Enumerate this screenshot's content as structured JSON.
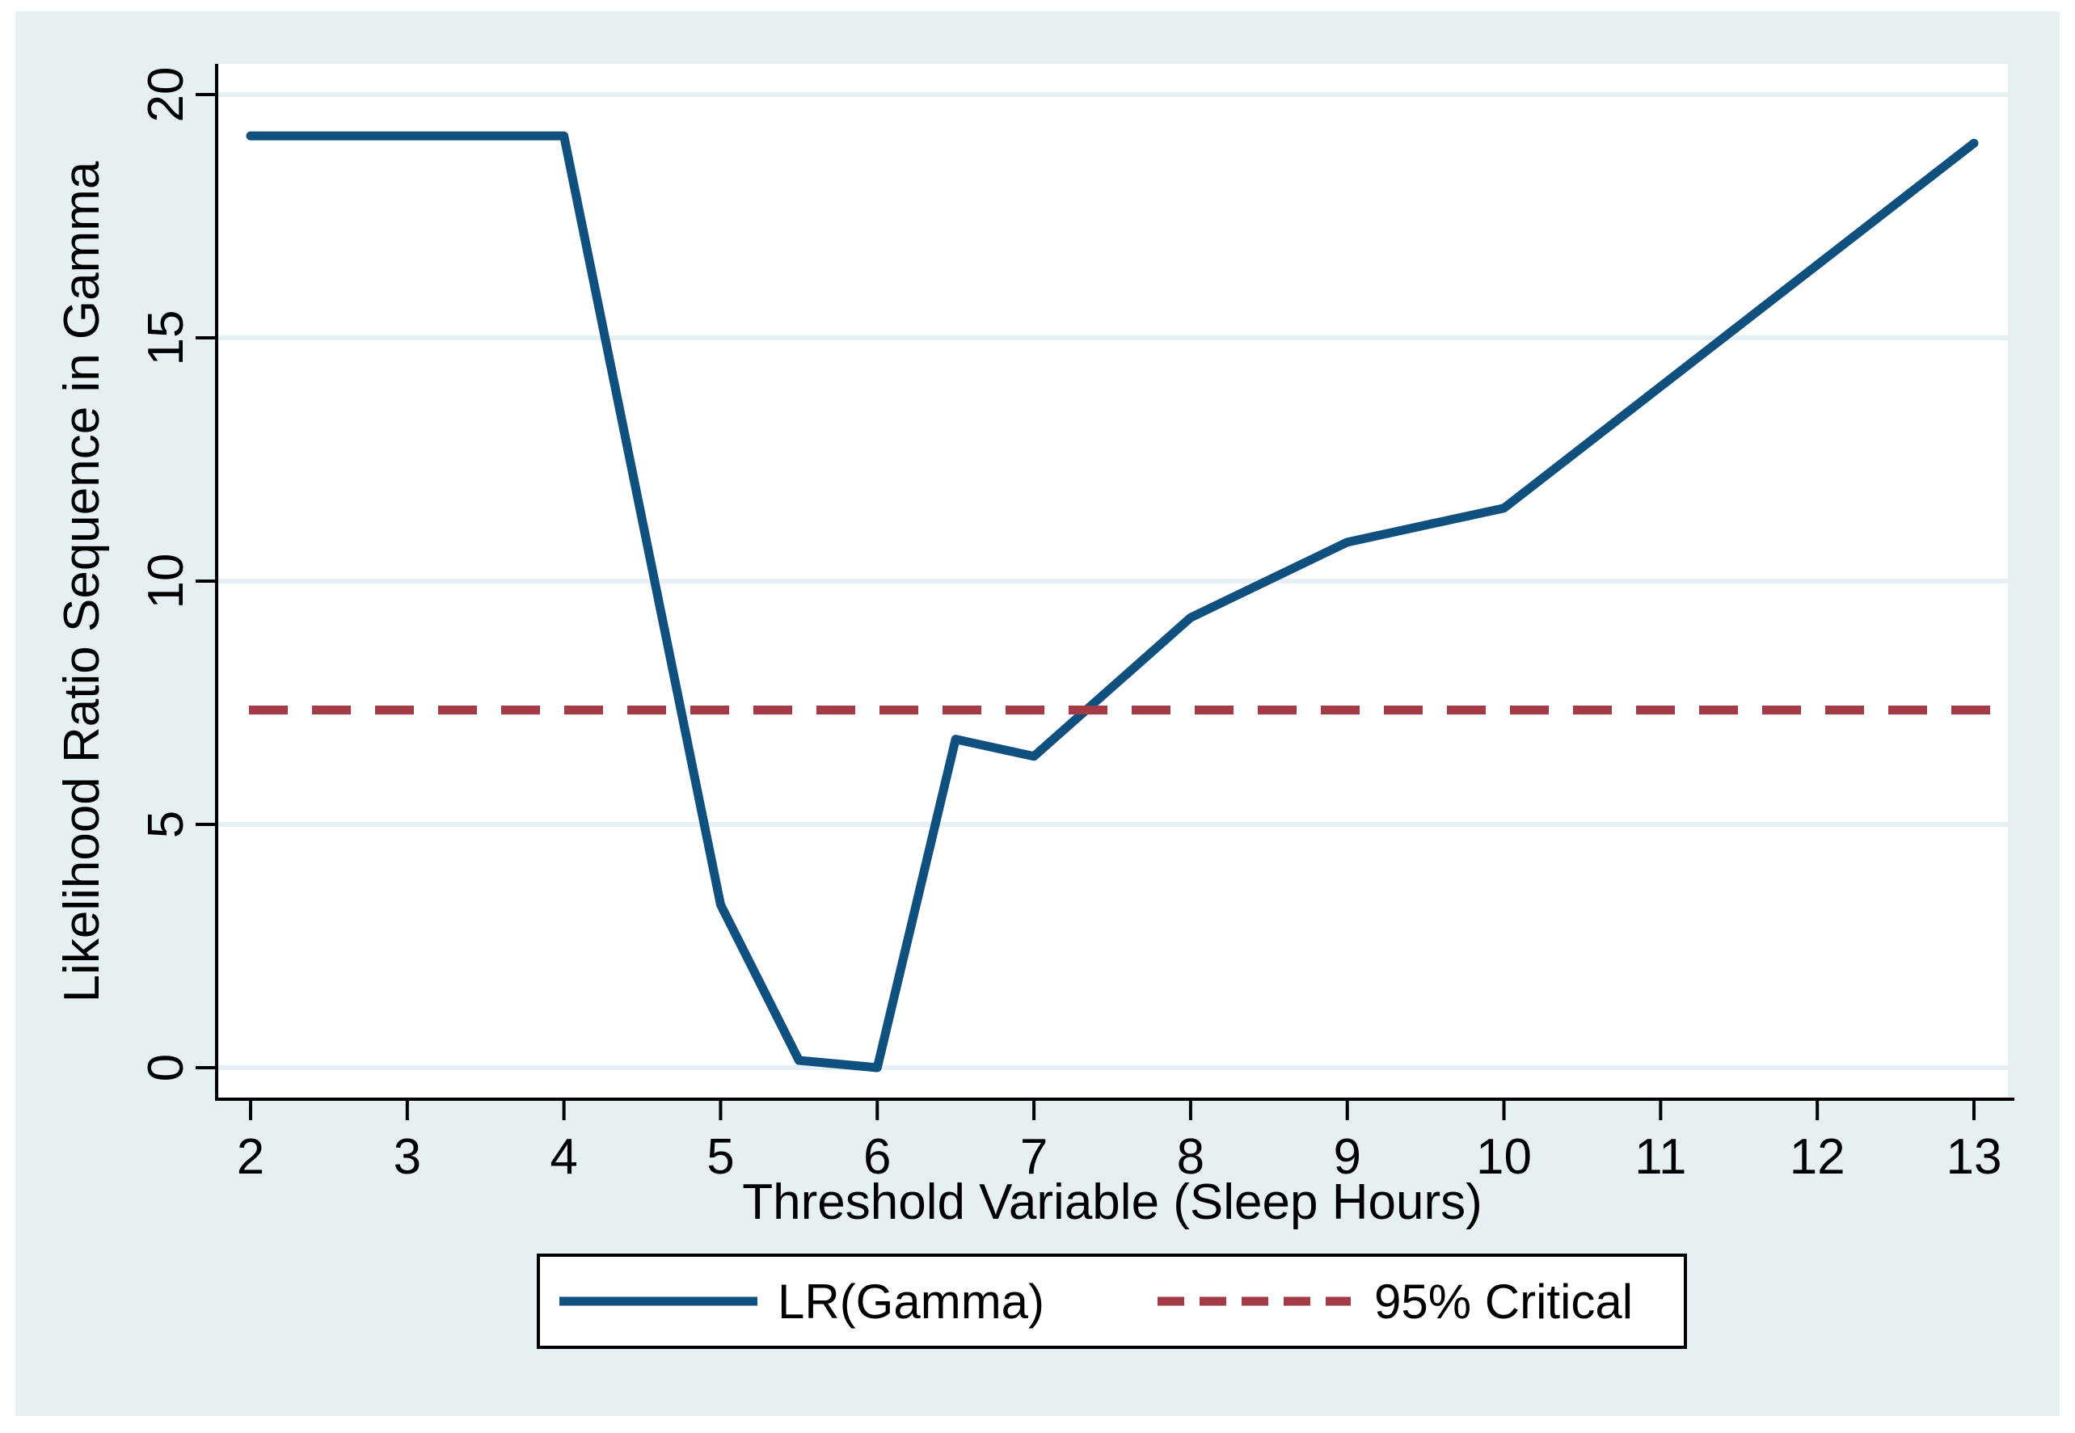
{
  "figure": {
    "canvas_color": "#ffffff",
    "region_color": "#e6f0f2",
    "plot_color": "#ffffff",
    "grid_color": "#e6f0f2",
    "axis_color": "#000000"
  },
  "chart_data": {
    "type": "line",
    "title": "",
    "xlabel": "Threshold Variable (Sleep Hours)",
    "ylabel": "Likelihood Ratio Sequence in Gamma",
    "xlim": [
      2,
      13
    ],
    "ylim": [
      0,
      20
    ],
    "x_ticks": [
      2,
      3,
      4,
      5,
      6,
      7,
      8,
      9,
      10,
      11,
      12,
      13
    ],
    "y_ticks": [
      0,
      5,
      10,
      15,
      20
    ],
    "grid": "horizontal gridlines at y ticks",
    "legend_position": "bottom center, boxed",
    "series": [
      {
        "name": "LR(Gamma)",
        "style": "solid",
        "color": "#10507e",
        "x": [
          2,
          4,
          5,
          5.5,
          6,
          6.5,
          7,
          8,
          9,
          10,
          13
        ],
        "y": [
          19.15,
          19.15,
          3.35,
          0.15,
          0,
          6.75,
          6.4,
          9.25,
          10.8,
          11.5,
          19.0
        ]
      },
      {
        "name": "95% Critical",
        "style": "dashed",
        "color": "#a23b45",
        "critical_value": 7.35
      }
    ]
  },
  "legend": {
    "lr_label": "LR(Gamma)",
    "critical_label": "95% Critical"
  }
}
